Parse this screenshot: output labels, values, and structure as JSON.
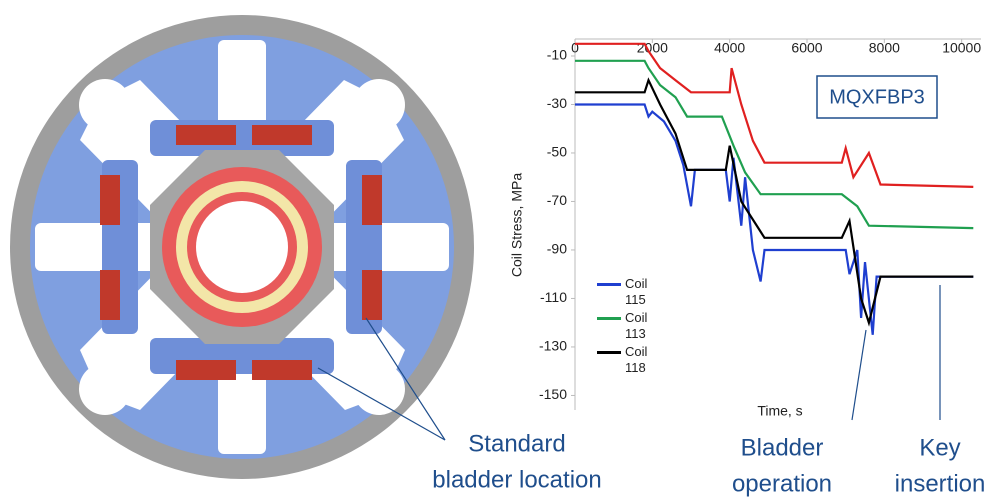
{
  "diagram": {
    "callout_line1": "Standard",
    "callout_line2": "bladder location"
  },
  "chart_data": {
    "type": "line",
    "y_label": "Coil Stress, MPa",
    "x_label": "Time, s",
    "annotation": "MQXFBP3",
    "callout_bladder": [
      "Bladder",
      "operation"
    ],
    "callout_key": [
      "Key",
      "insertion"
    ],
    "xlim": [
      0,
      10500
    ],
    "xticks": [
      0,
      2000,
      4000,
      6000,
      8000,
      10000
    ],
    "ylim": [
      -156,
      -3
    ],
    "yticks": [
      -10,
      -30,
      -50,
      -70,
      -90,
      -110,
      -130,
      -150
    ],
    "series": [
      {
        "color": "#e02020",
        "x": [
          0,
          1800,
          1900,
          2200,
          2600,
          3000,
          4000,
          4050,
          4300,
          4600,
          4900,
          6900,
          7000,
          7200,
          7600,
          7900,
          10300
        ],
        "values": [
          -5,
          -5,
          -8,
          -15,
          -20,
          -25,
          -25,
          -15,
          -30,
          -45,
          -54,
          -54,
          -48,
          -60,
          -50,
          -63,
          -64
        ]
      },
      {
        "name": "Coil 115",
        "color": "#1f3fd0",
        "x": [
          0,
          1800,
          1900,
          2000,
          2300,
          2600,
          2800,
          3000,
          3100,
          3900,
          4000,
          4100,
          4300,
          4400,
          4600,
          4800,
          4900,
          7000,
          7100,
          7300,
          7400,
          7500,
          7700,
          7800,
          10300
        ],
        "values": [
          -30,
          -30,
          -35,
          -33,
          -37,
          -45,
          -55,
          -72,
          -57,
          -57,
          -70,
          -52,
          -80,
          -60,
          -90,
          -103,
          -90,
          -90,
          -100,
          -90,
          -118,
          -95,
          -125,
          -101,
          -101
        ]
      },
      {
        "name": "Coil 113",
        "color": "#20a050",
        "x": [
          0,
          1800,
          1900,
          2200,
          2600,
          2900,
          3800,
          4100,
          4400,
          4800,
          6900,
          7300,
          7600,
          10300
        ],
        "values": [
          -12,
          -12,
          -15,
          -22,
          -27,
          -35,
          -35,
          -47,
          -58,
          -67,
          -67,
          -72,
          -80,
          -81
        ]
      },
      {
        "name": "Coil 118",
        "color": "#000000",
        "x": [
          0,
          1800,
          1900,
          2200,
          2600,
          2900,
          3900,
          4000,
          4300,
          4900,
          6900,
          7100,
          7400,
          7600,
          7900,
          10300
        ],
        "values": [
          -25,
          -25,
          -20,
          -30,
          -42,
          -57,
          -57,
          -47,
          -70,
          -85,
          -85,
          -78,
          -110,
          -120,
          -101,
          -101
        ]
      }
    ]
  }
}
